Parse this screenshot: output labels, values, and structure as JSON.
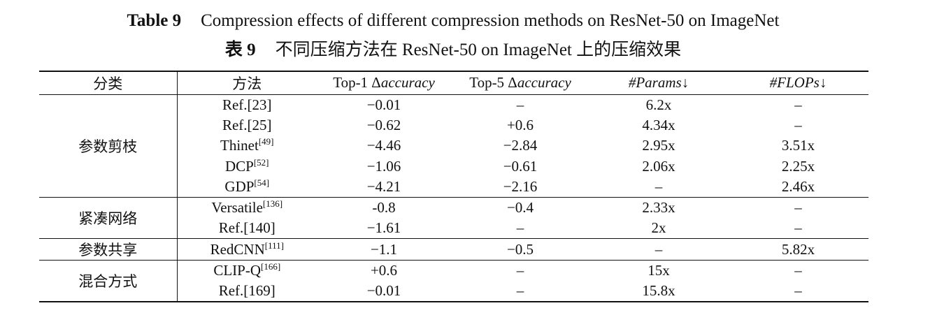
{
  "caption": {
    "en_label": "Table 9",
    "en_text": "Compression effects of different compression methods on ResNet-50 on ImageNet",
    "zh_label": "表 9",
    "zh_text": "不同压缩方法在 ResNet-50 on ImageNet 上的压缩效果"
  },
  "headers": {
    "category": "分类",
    "method": "方法",
    "top1_prefix": "Top-1 Δ",
    "top1_italic": "accuracy",
    "top5_prefix": "Top-5 Δ",
    "top5_italic": "accuracy",
    "params": "#Params",
    "params_arrow": "↓",
    "flops": "#FLOPs",
    "flops_arrow": "↓"
  },
  "groups": [
    {
      "category": "参数剪枝",
      "rows": [
        {
          "method": "Ref.[23]",
          "ref": "",
          "top1": "−0.01",
          "top5": "–",
          "params": "6.2x",
          "flops": "–"
        },
        {
          "method": "Ref.[25]",
          "ref": "",
          "top1": "−0.62",
          "top5": "+0.6",
          "params": "4.34x",
          "flops": "–"
        },
        {
          "method": "Thinet",
          "ref": "[49]",
          "top1": "−4.46",
          "top5": "−2.84",
          "params": "2.95x",
          "flops": "3.51x"
        },
        {
          "method": "DCP",
          "ref": "[52]",
          "top1": "−1.06",
          "top5": "−0.61",
          "params": "2.06x",
          "flops": "2.25x"
        },
        {
          "method": "GDP",
          "ref": "[54]",
          "top1": "−4.21",
          "top5": "−2.16",
          "params": "–",
          "flops": "2.46x"
        }
      ]
    },
    {
      "category": "紧凑网络",
      "rows": [
        {
          "method": "Versatile",
          "ref": "[136]",
          "top1": "-0.8",
          "top5": "−0.4",
          "params": "2.33x",
          "flops": "–"
        },
        {
          "method": "Ref.[140]",
          "ref": "",
          "top1": "−1.61",
          "top5": "–",
          "params": "2x",
          "flops": "–"
        }
      ]
    },
    {
      "category": "参数共享",
      "rows": [
        {
          "method": "RedCNN",
          "ref": "[111]",
          "top1": "−1.1",
          "top5": "−0.5",
          "params": "–",
          "flops": "5.82x"
        }
      ]
    },
    {
      "category": "混合方式",
      "rows": [
        {
          "method": "CLIP-Q",
          "ref": "[166]",
          "top1": "+0.6",
          "top5": "–",
          "params": "15x",
          "flops": "–"
        },
        {
          "method": "Ref.[169]",
          "ref": "",
          "top1": "−0.01",
          "top5": "–",
          "params": "15.8x",
          "flops": "–"
        }
      ]
    }
  ]
}
